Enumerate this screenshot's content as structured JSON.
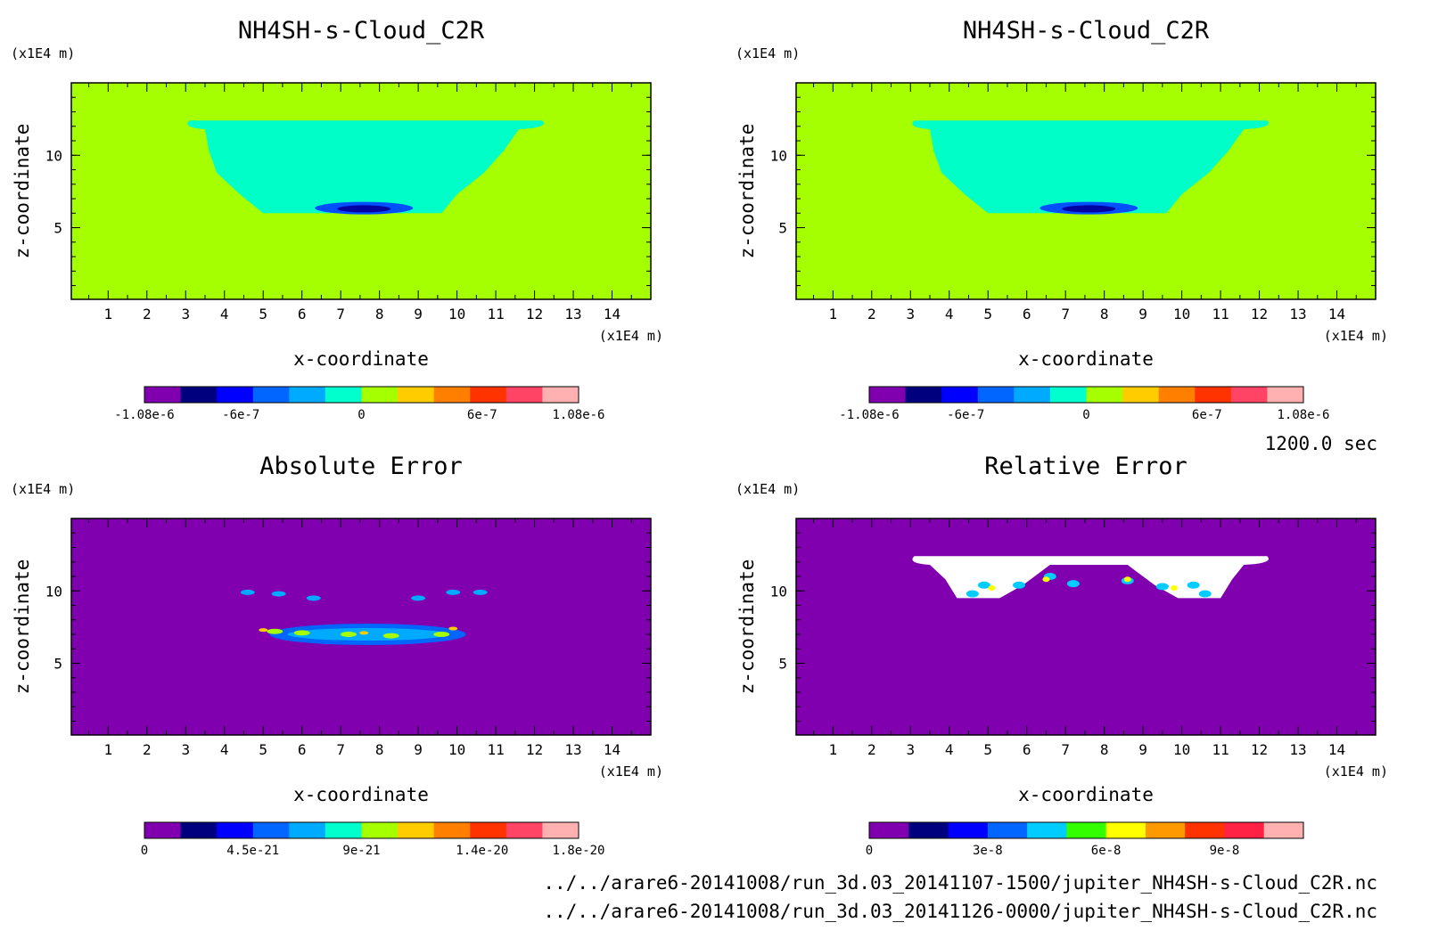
{
  "colors": {
    "background": "#ffffff",
    "field_background": "#a6ff00",
    "cloud": "#00ffc8",
    "error_background": "#8000b0",
    "deep_blue": "#0000a0",
    "blue": "#0050ff",
    "white": "#ffffff"
  },
  "colorbar_colors": {
    "value": [
      "#8000b0",
      "#00007f",
      "#0000ff",
      "#0066ff",
      "#00aaff",
      "#00ffcc",
      "#a6ff00",
      "#ffcc00",
      "#ff7f00",
      "#ff3300",
      "#ff4466",
      "#ffb0b0"
    ],
    "abs": [
      "#8000b0",
      "#00007f",
      "#0000ff",
      "#0066ff",
      "#00aaff",
      "#00ffcc",
      "#a6ff00",
      "#ffcc00",
      "#ff7f00",
      "#ff3300",
      "#ff4466",
      "#ffb0b0"
    ],
    "rel": [
      "#8000b0",
      "#00007f",
      "#0000ff",
      "#0066ff",
      "#00ccff",
      "#33ff00",
      "#ffff00",
      "#ff9900",
      "#ff3300",
      "#ff2244",
      "#ffb0b0"
    ]
  },
  "chart_data": [
    {
      "type": "heatmap",
      "title": "NH4SH-s-Cloud_C2R",
      "xlabel": "x-coordinate",
      "ylabel": "z-coordinate",
      "x_unit": "(x1E4 m)",
      "y_unit": "(x1E4 m)",
      "x_ticks": [
        "1",
        "2",
        "3",
        "4",
        "5",
        "6",
        "7",
        "8",
        "9",
        "10",
        "11",
        "12",
        "13",
        "14"
      ],
      "y_ticks": [
        "5",
        "10"
      ],
      "xlim": [
        0.05,
        15.0
      ],
      "ylim": [
        0.05,
        15.0
      ],
      "colorbar_labels": [
        "-1.08e-6",
        "-6e-7",
        "0",
        "6e-7",
        "1.08e-6"
      ],
      "colorbar_range": [
        -1.08e-06,
        1.08e-06
      ]
    },
    {
      "type": "heatmap",
      "title": "NH4SH-s-Cloud_C2R",
      "xlabel": "x-coordinate",
      "ylabel": "z-coordinate",
      "x_unit": "(x1E4 m)",
      "y_unit": "(x1E4 m)",
      "x_ticks": [
        "1",
        "2",
        "3",
        "4",
        "5",
        "6",
        "7",
        "8",
        "9",
        "10",
        "11",
        "12",
        "13",
        "14"
      ],
      "y_ticks": [
        "5",
        "10"
      ],
      "xlim": [
        0.05,
        15.0
      ],
      "ylim": [
        0.05,
        15.0
      ],
      "colorbar_labels": [
        "-1.08e-6",
        "-6e-7",
        "0",
        "6e-7",
        "1.08e-6"
      ],
      "colorbar_range": [
        -1.08e-06,
        1.08e-06
      ]
    },
    {
      "type": "heatmap",
      "title": "Absolute Error",
      "xlabel": "x-coordinate",
      "ylabel": "z-coordinate",
      "x_unit": "(x1E4 m)",
      "y_unit": "(x1E4 m)",
      "x_ticks": [
        "1",
        "2",
        "3",
        "4",
        "5",
        "6",
        "7",
        "8",
        "9",
        "10",
        "11",
        "12",
        "13",
        "14"
      ],
      "y_ticks": [
        "5",
        "10"
      ],
      "xlim": [
        0.05,
        15.0
      ],
      "ylim": [
        0.05,
        15.0
      ],
      "colorbar_labels": [
        "0",
        "4.5e-21",
        "9e-21",
        "1.4e-20",
        "1.8e-20"
      ],
      "colorbar_range": [
        0,
        1.8e-20
      ]
    },
    {
      "type": "heatmap",
      "title": "Relative Error",
      "xlabel": "x-coordinate",
      "ylabel": "z-coordinate",
      "x_unit": "(x1E4 m)",
      "y_unit": "(x1E4 m)",
      "x_ticks": [
        "1",
        "2",
        "3",
        "4",
        "5",
        "6",
        "7",
        "8",
        "9",
        "10",
        "11",
        "12",
        "13",
        "14"
      ],
      "y_ticks": [
        "5",
        "10"
      ],
      "xlim": [
        0.05,
        15.0
      ],
      "ylim": [
        0.05,
        15.0
      ],
      "colorbar_labels": [
        "0",
        "3e-8",
        "6e-8",
        "9e-8"
      ],
      "colorbar_range": [
        0,
        1.1e-07
      ]
    }
  ],
  "time_label": "1200.0 sec",
  "footer": {
    "line1": "../../arare6-20141008/run_3d.03_20141107-1500/jupiter_NH4SH-s-Cloud_C2R.nc",
    "line2": "../../arare6-20141008/run_3d.03_20141126-0000/jupiter_NH4SH-s-Cloud_C2R.nc"
  }
}
